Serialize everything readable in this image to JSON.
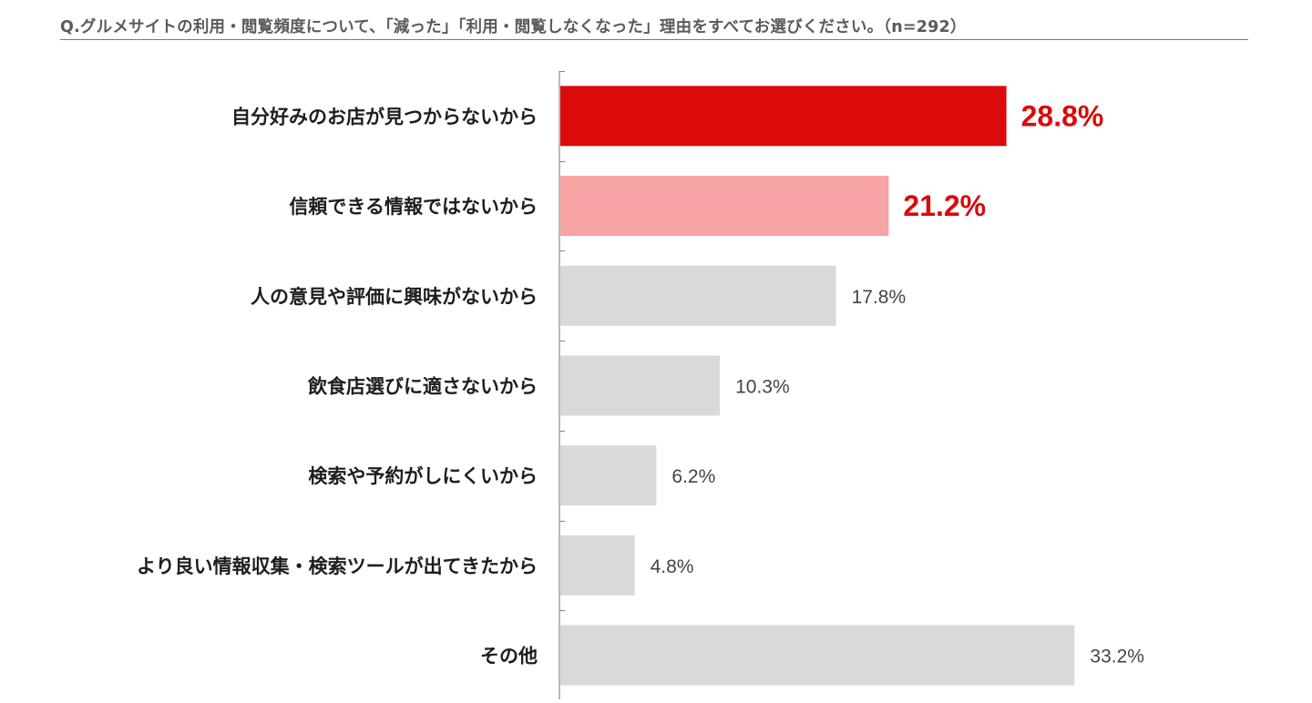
{
  "title": "Q.グルメサイトの利用・閲覧頻度について、「減った」「利用・閲覧しなくなった」理由をすべてお選びください。（n=292）",
  "colors": {
    "primary_highlight": "#d90b0b",
    "secondary_highlight": "#f7a3a3",
    "default_bar": "#d9d9d9",
    "axis": "#8c8c8c",
    "highlight_label": "#d90b0b",
    "default_label": "#444444"
  },
  "chart_data": {
    "type": "bar",
    "orientation": "horizontal",
    "title": "Q.グルメサイトの利用・閲覧頻度について、「減った」「利用・閲覧しなくなった」理由をすべてお選びください。（n=292）",
    "xlim": [
      0,
      40
    ],
    "grid": false,
    "legend": "none",
    "categories": [
      "自分好みのお店が見つからないから",
      "信頼できる情報ではないから",
      "人の意見や評価に興味がないから",
      "飲食店選びに適さないから",
      "検索や予約がしにくいから",
      "より良い情報収集・検索ツールが出てきたから",
      "その他"
    ],
    "values": [
      28.8,
      21.2,
      17.8,
      10.3,
      6.2,
      4.8,
      33.2
    ],
    "value_labels": [
      "28.8%",
      "21.2%",
      "17.8%",
      "10.3%",
      "6.2%",
      "4.8%",
      "33.2%"
    ],
    "bar_colors": [
      "#d90b0b",
      "#f7a3a3",
      "#d9d9d9",
      "#d9d9d9",
      "#d9d9d9",
      "#d9d9d9",
      "#d9d9d9"
    ],
    "highlighted_labels": [
      true,
      true,
      false,
      false,
      false,
      false,
      false
    ]
  }
}
